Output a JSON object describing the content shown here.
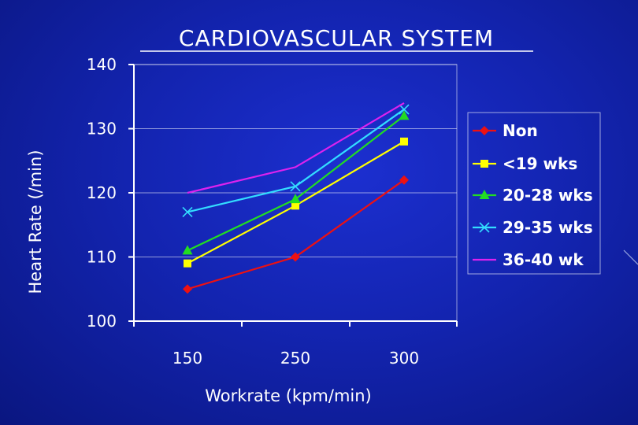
{
  "chart_data": {
    "type": "line",
    "title": "CARDIOVASCULAR SYSTEM",
    "xlabel": "Workrate (kpm/min)",
    "ylabel": "Heart Rate (/min)",
    "categories": [
      "150",
      "250",
      "300"
    ],
    "ylim": [
      100,
      140
    ],
    "yticks": [
      "100",
      "110",
      "120",
      "130",
      "140"
    ],
    "grid": "horizontal",
    "legend_position": "right",
    "series": [
      {
        "name": "Non",
        "values": [
          105,
          110,
          122
        ],
        "color": "#ee1111",
        "marker": "diamond"
      },
      {
        "name": "<19 wks",
        "values": [
          109,
          118,
          128
        ],
        "color": "#ffff00",
        "marker": "square"
      },
      {
        "name": "20-28 wks",
        "values": [
          111,
          119,
          132
        ],
        "color": "#22dd22",
        "marker": "triangle"
      },
      {
        "name": "29-35 wks",
        "values": [
          117,
          121,
          133
        ],
        "color": "#33ddff",
        "marker": "x"
      },
      {
        "name": "36-40 wk",
        "values": [
          120,
          124,
          134
        ],
        "color": "#dd22ee",
        "marker": "dash"
      }
    ]
  }
}
